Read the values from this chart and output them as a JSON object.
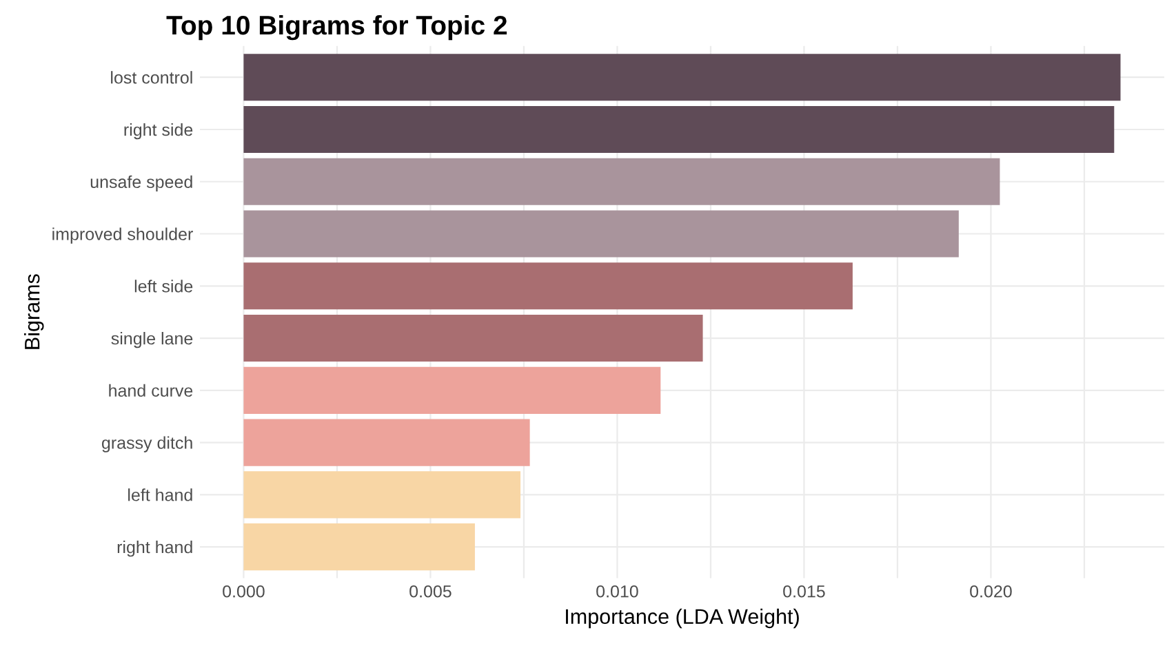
{
  "chart_data": {
    "type": "bar",
    "orientation": "horizontal",
    "title": "Top 10 Bigrams for Topic 2",
    "xlabel": "Importance (LDA Weight)",
    "ylabel": "Bigrams",
    "categories": [
      "lost control",
      "right side",
      "unsafe speed",
      "improved shoulder",
      "left side",
      "single lane",
      "hand curve",
      "grassy ditch",
      "left hand",
      "right hand"
    ],
    "values": [
      0.02347,
      0.0233,
      0.02024,
      0.01914,
      0.0163,
      0.01229,
      0.01116,
      0.00766,
      0.00741,
      0.00619
    ],
    "colors": [
      "#5f4b57",
      "#5f4b57",
      "#a9949c",
      "#a9949c",
      "#a96e71",
      "#a96e71",
      "#eda39b",
      "#eda39b",
      "#f8d6a5",
      "#f8d6a5"
    ],
    "xlim": [
      -0.00117,
      0.02464
    ],
    "xticks": [
      {
        "value": 0,
        "label": "0.000"
      },
      {
        "value": 0.0025,
        "label": null
      },
      {
        "value": 0.005,
        "label": "0.005"
      },
      {
        "value": 0.0075,
        "label": null
      },
      {
        "value": 0.01,
        "label": "0.010"
      },
      {
        "value": 0.0125,
        "label": null
      },
      {
        "value": 0.015,
        "label": "0.015"
      },
      {
        "value": 0.0175,
        "label": null
      },
      {
        "value": 0.02,
        "label": "0.020"
      },
      {
        "value": 0.0225,
        "label": null
      }
    ],
    "grid": true
  }
}
